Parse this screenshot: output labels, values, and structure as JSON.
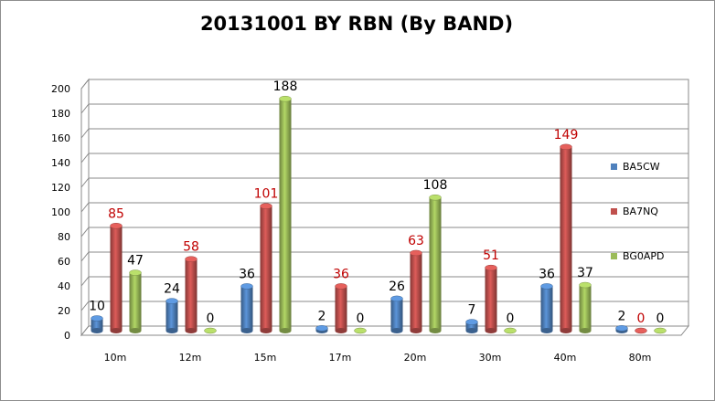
{
  "chart_data": {
    "type": "bar",
    "title": "20131001 BY RBN (By BAND)",
    "xlabel": "",
    "ylabel": "",
    "ylim": [
      0,
      200
    ],
    "yticks": [
      0,
      20,
      40,
      60,
      80,
      100,
      120,
      140,
      160,
      180,
      200
    ],
    "categories": [
      "10m",
      "12m",
      "15m",
      "17m",
      "20m",
      "30m",
      "40m",
      "80m"
    ],
    "series": [
      {
        "name": "BA5CW",
        "values": [
          10,
          24,
          36,
          2,
          26,
          7,
          36,
          2
        ],
        "color": "#4f81bd",
        "label_color": "#000000"
      },
      {
        "name": "BA7NQ",
        "values": [
          85,
          58,
          101,
          36,
          63,
          51,
          149,
          0
        ],
        "color": "#c0504d",
        "label_color": "#c00000"
      },
      {
        "name": "BG0APD",
        "values": [
          47,
          0,
          188,
          0,
          108,
          0,
          37,
          0
        ],
        "color": "#9bbb59",
        "label_color": "#000000"
      }
    ],
    "grid": true,
    "legend_position": "right",
    "style": "3d-cylinder"
  }
}
